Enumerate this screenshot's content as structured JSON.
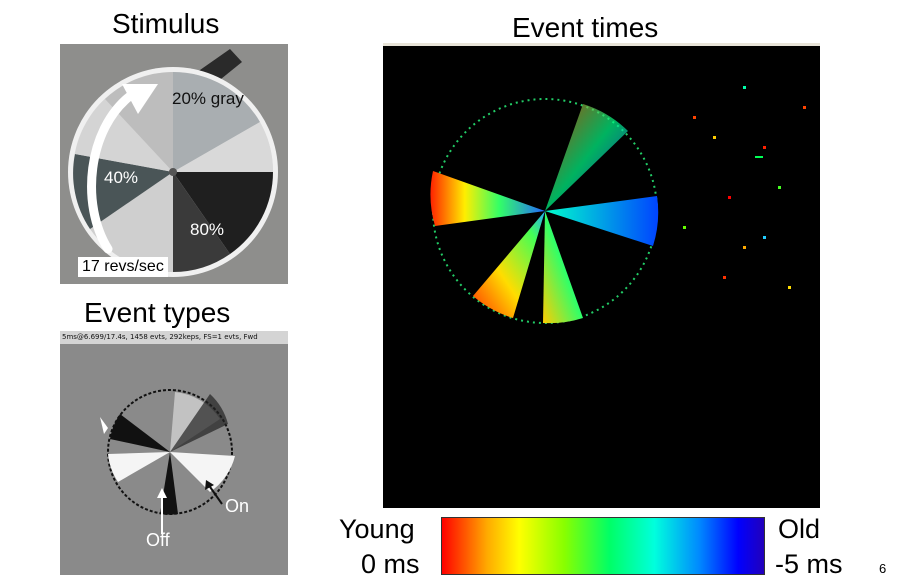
{
  "stimulus": {
    "title": "Stimulus",
    "segments": [
      "20% gray",
      "40%",
      "80%"
    ],
    "rotation_label": "17 revs/sec"
  },
  "event_types": {
    "title": "Event types",
    "status_text": "5ms@6.699/17.4s, 1458 evts, 292keps, FS=1 evts,  Fwd",
    "on_label": "On",
    "off_label": "Off"
  },
  "event_times": {
    "title": "Event times"
  },
  "colorbar": {
    "young_label": "Young",
    "young_time": "0 ms",
    "old_label": "Old",
    "old_time": "-5 ms"
  },
  "slide": {
    "page_number": "6"
  }
}
